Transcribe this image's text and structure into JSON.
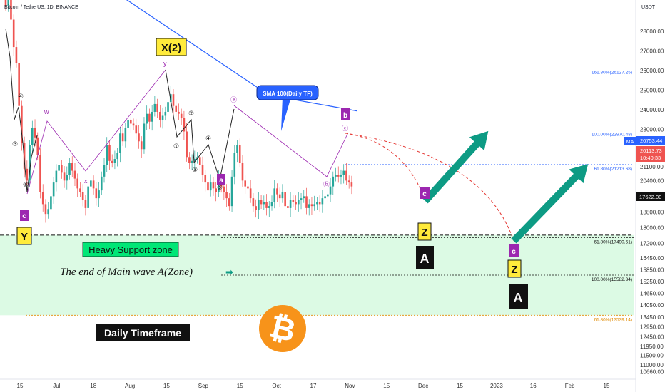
{
  "header": {
    "symbol": "Bitcoin / TetherUS, 1D, BINANCE",
    "currency": "USDT"
  },
  "chart_data": {
    "type": "candlestick",
    "title": "Bitcoin / TetherUS, 1D, BINANCE",
    "x_tick_labels": [
      "15",
      "Jul",
      "18",
      "Aug",
      "15",
      "Sep",
      "15",
      "Oct",
      "17",
      "Nov",
      "15",
      "Dec",
      "15",
      "2023",
      "16",
      "Feb",
      "15"
    ],
    "y_tick_labels": [
      "28000.00",
      "27000.00",
      "26000.00",
      "25000.00",
      "24000.00",
      "23000.00",
      "22000.00",
      "21100.00",
      "20400.00",
      "19600.00",
      "18800.00",
      "18000.00",
      "17200.00",
      "16450.00",
      "15850.00",
      "15250.00",
      "14650.00",
      "14050.00",
      "13450.00",
      "12950.00",
      "12450.00",
      "11950.00",
      "11500.00",
      "11000.00",
      "10660.00"
    ],
    "ylim": [
      10500,
      28800
    ],
    "price_badges": {
      "ma_label": "MA",
      "ma_value": "20753.44",
      "last_price": "20113.73",
      "countdown": "10:40:33",
      "support_level": "17622.00"
    },
    "sma_label": "SMA 100(Daily TF)",
    "fib_levels": [
      {
        "label": "161.80%(26127.25)",
        "value": 26127.25,
        "color": "#2962ff"
      },
      {
        "label": "100.00%(22970.48)",
        "value": 22970.48,
        "color": "#2962ff"
      },
      {
        "label": "61.80%(21213.68)",
        "value": 21213.68,
        "color": "#2962ff"
      },
      {
        "label": "61.80%(17490.61)",
        "value": 17490.61,
        "color": "#111111"
      },
      {
        "label": "100.00%(15582.34)",
        "value": 15582.34,
        "color": "#111111"
      },
      {
        "label": "61.80%(13539.14)",
        "value": 13539.14,
        "color": "#e08a00"
      }
    ],
    "support_zone": {
      "top": 17622,
      "bottom": 13539,
      "label": "Heavy Support zone"
    },
    "annotations": {
      "x2": "X(2)",
      "y": "Y",
      "c_left": "c",
      "a_mid": "a",
      "b_label": "b",
      "end_wave": "The end of Main wave A(Zone)",
      "timeframe": "Daily Timeframe",
      "z1": "Z",
      "a1": "A",
      "c1": "c",
      "z2": "Z",
      "a2": "A",
      "c2": "c",
      "arrow_glyph": "➡"
    },
    "wave_labels": [
      "④",
      "③",
      "⑤",
      "w",
      "x",
      "y",
      "①",
      "②",
      "③",
      "④",
      "⑤",
      "ⓐ",
      "ⓑ",
      "ⓒ"
    ],
    "colors": {
      "up": "#26a69a",
      "down": "#ef5350",
      "sma": "#2962ff",
      "zone": "#b9f6ca",
      "arrow": "#0d9b84",
      "projection": "#e53935",
      "pattern": "#9c27b0",
      "bitcoin": "#f7931a"
    },
    "series": [
      {
        "name": "BTCUSDT",
        "closes": [
          29300,
          29800,
          28600,
          27200,
          26400,
          24200,
          22300,
          21000,
          20400,
          22200,
          23100,
          22600,
          21700,
          19800,
          19200,
          18700,
          18950,
          19600,
          20300,
          20900,
          21200,
          20800,
          20400,
          20700,
          21300,
          20900,
          20500,
          20000,
          19800,
          19400,
          19000,
          20100,
          20400,
          20000,
          19500,
          19900,
          20600,
          21200,
          22200,
          21400,
          21300,
          21500,
          21800,
          22800,
          22400,
          23100,
          23500,
          23300,
          23200,
          22800,
          22400,
          22000,
          23300,
          23800,
          23400,
          23900,
          24300,
          23900,
          23500,
          23700,
          23900,
          24400,
          24800,
          24200,
          23900,
          23800,
          23600,
          22900,
          21600,
          21300,
          21400,
          21500,
          21600,
          21200,
          20700,
          20300,
          19900,
          20300,
          20000,
          19800,
          20500,
          20100,
          19800,
          19500,
          19100,
          20600,
          21800,
          22200,
          21300,
          20400,
          20100,
          20000,
          19500,
          19100,
          18900,
          19400,
          19200,
          19300,
          19000,
          19100,
          19300,
          20000,
          19700,
          19500,
          19800,
          19100,
          19000,
          19400,
          19300,
          19200,
          19400,
          19500,
          19600,
          19000,
          19200,
          19100,
          19200,
          19300,
          19200,
          19500,
          19600,
          19700,
          20100,
          20600,
          20700,
          20600,
          20700,
          20900,
          20400,
          20300,
          20100
        ]
      }
    ]
  }
}
